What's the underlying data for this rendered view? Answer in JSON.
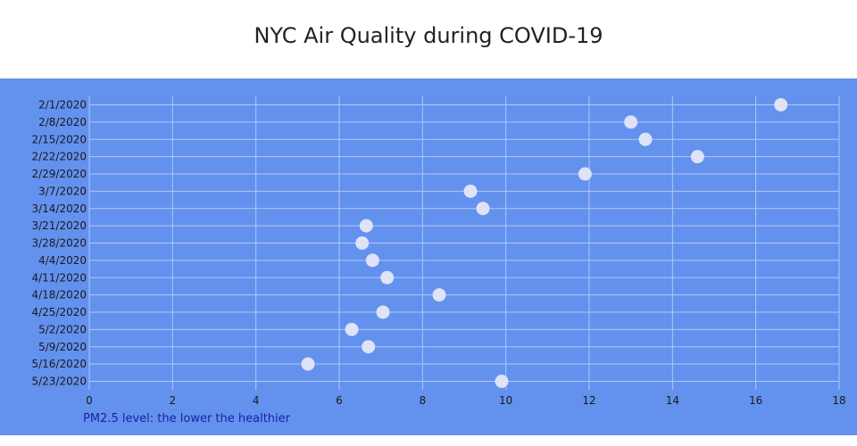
{
  "chart_data": {
    "type": "scatter",
    "title": "NYC Air Quality during COVID-19",
    "xlabel": "PM2.5 level: the lower the healthier",
    "ylabel": "",
    "xlim": [
      0,
      18
    ],
    "xticks": [
      0,
      2,
      4,
      6,
      8,
      10,
      12,
      14,
      16,
      18
    ],
    "grid": true,
    "legend": "none",
    "colors": {
      "page_background": "#ffffff",
      "plot_background": "#6391ee",
      "grid": "#b3c8f5",
      "marker": "#dfe3f7",
      "xlabel": "#1a22a0"
    },
    "series": [
      {
        "y": [
          "2/1/2020",
          "2/8/2020",
          "2/15/2020",
          "2/22/2020",
          "2/29/2020",
          "3/7/2020",
          "3/14/2020",
          "3/21/2020",
          "3/28/2020",
          "4/4/2020",
          "4/11/2020",
          "4/18/2020",
          "4/25/2020",
          "5/2/2020",
          "5/9/2020",
          "5/16/2020",
          "5/23/2020"
        ],
        "x": [
          16.6,
          13.0,
          13.35,
          14.6,
          11.9,
          9.15,
          9.45,
          6.65,
          6.55,
          6.8,
          7.15,
          8.4,
          7.05,
          6.3,
          6.7,
          5.25,
          9.9
        ]
      }
    ]
  }
}
